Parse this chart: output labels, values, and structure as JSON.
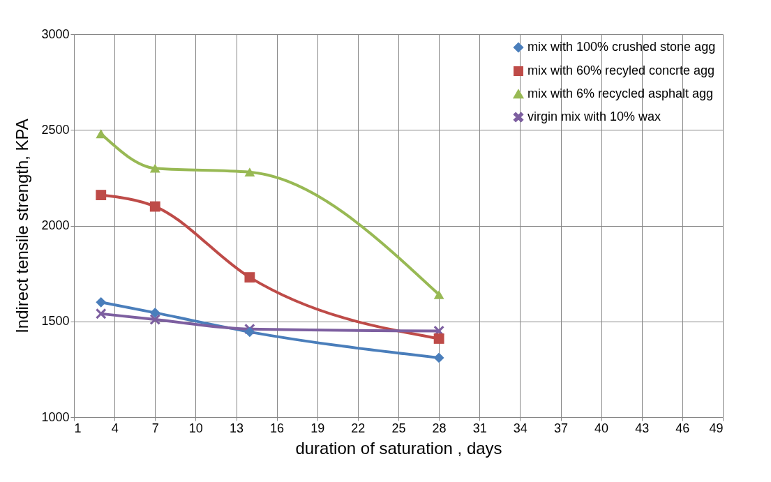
{
  "chart_data": {
    "type": "line",
    "xlabel": "duration of saturation , days",
    "ylabel": "Indirect tensile strength, KPA",
    "x": [
      3,
      7,
      14,
      28
    ],
    "series": [
      {
        "name": " mix with 100% crushed stone agg",
        "color": "#4a7ebb",
        "marker": "diamond",
        "values": [
          1600,
          1545,
          1445,
          1310
        ]
      },
      {
        "name": "mix with 60% recyled concrte agg",
        "color": "#be4b48",
        "marker": "square",
        "values": [
          2160,
          2100,
          1730,
          1410
        ]
      },
      {
        "name": "mix with 6% recycled asphalt agg",
        "color": "#98b954",
        "marker": "triangle",
        "values": [
          2480,
          2300,
          2280,
          1640
        ]
      },
      {
        "name": "virgin mix with 10% wax",
        "color": "#7d5fa0",
        "marker": "cross",
        "values": [
          1540,
          1510,
          1460,
          1450
        ]
      }
    ],
    "xlim": [
      1,
      49
    ],
    "xticks": [
      1,
      4,
      7,
      10,
      13,
      16,
      19,
      22,
      25,
      28,
      31,
      34,
      37,
      40,
      43,
      46,
      49
    ],
    "ylim": [
      1000,
      3000
    ],
    "yticks": [
      1000,
      1500,
      2000,
      2500,
      3000
    ],
    "grid": true,
    "legend": "top right",
    "line_style": "solid"
  }
}
